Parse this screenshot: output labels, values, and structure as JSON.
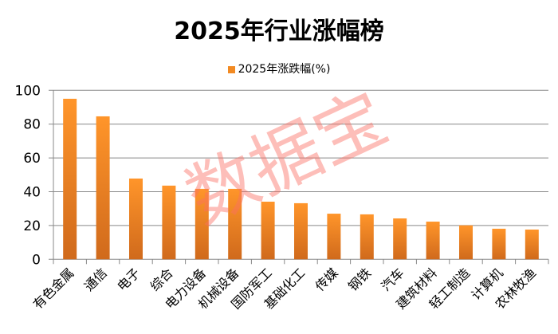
{
  "chart_data": {
    "type": "bar",
    "title": "2025年行业涨幅榜",
    "legend": "2025年涨跌幅(%)",
    "legend_placement": "top",
    "categories": [
      "有色金属",
      "通信",
      "电子",
      "综合",
      "电力设备",
      "机械设备",
      "国防军工",
      "基础化工",
      "传媒",
      "钢铁",
      "汽车",
      "建筑材料",
      "轻工制造",
      "计算机",
      "农林牧渔"
    ],
    "values": [
      95.0,
      84.6,
      47.8,
      43.6,
      41.7,
      41.7,
      34.1,
      33.2,
      27.0,
      26.6,
      24.2,
      22.3,
      20.1,
      18.1,
      17.6
    ],
    "ylim": [
      0,
      100
    ],
    "yticks": [
      0,
      20,
      40,
      60,
      80,
      100
    ],
    "grid": true,
    "colors": {
      "bar_top": "#ff952a",
      "bar_bottom": "#d06a1c"
    }
  },
  "watermark": "数据宝"
}
